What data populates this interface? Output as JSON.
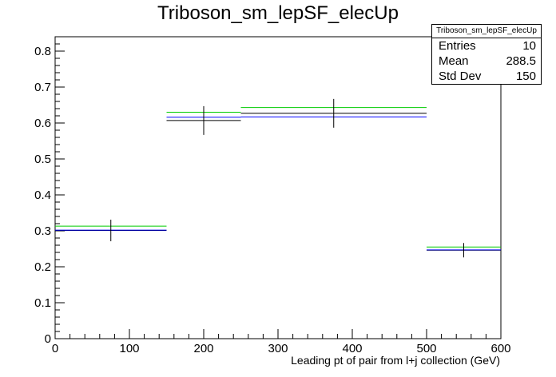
{
  "chart_data": {
    "type": "histogram",
    "title": "Triboson_sm_lepSF_elecUp",
    "xlabel": "Leading pt of pair from l+j collection (GeV)",
    "ylabel": "",
    "xlim": [
      0,
      600
    ],
    "ylim": [
      0,
      0.84
    ],
    "xticks": [
      0,
      100,
      200,
      300,
      400,
      500,
      600
    ],
    "yticks": [
      0,
      0.1,
      0.2,
      0.3,
      0.4,
      0.5,
      0.6,
      0.7,
      0.8
    ],
    "bins": [
      {
        "low": 0,
        "high": 150,
        "center": 75,
        "err": 0.03
      },
      {
        "low": 150,
        "high": 250,
        "center": 200,
        "err": 0.04
      },
      {
        "low": 250,
        "high": 500,
        "center": 375,
        "err": 0.04
      },
      {
        "low": 500,
        "high": 600,
        "center": 550,
        "err": 0.02
      }
    ],
    "series": [
      {
        "color": "#000000",
        "values": [
          0.301,
          0.607,
          0.627,
          0.246
        ]
      },
      {
        "color": "#0000ff",
        "values": [
          0.302,
          0.616,
          0.617,
          0.247
        ]
      },
      {
        "color": "#00cc00",
        "values": [
          0.313,
          0.63,
          0.643,
          0.255
        ]
      }
    ],
    "stats": {
      "name": "Triboson_sm_lepSF_elecUp",
      "entries_label": "Entries",
      "entries": "10",
      "mean_label": "Mean",
      "mean": "288.5",
      "std_label": "Std Dev",
      "std": "150"
    }
  }
}
